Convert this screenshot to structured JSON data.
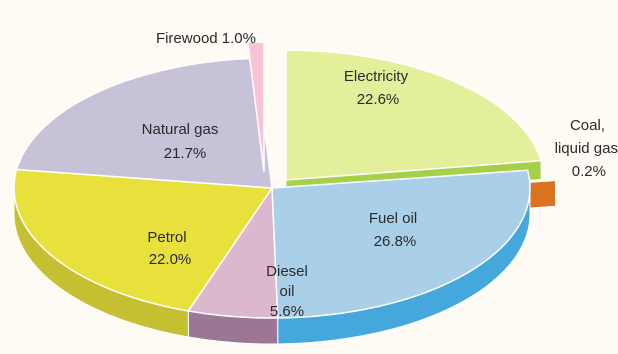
{
  "chart_data": {
    "type": "pie",
    "title": "",
    "slices": [
      {
        "label": "Electricity",
        "value": 22.6,
        "value_label": "22.6%",
        "color": "#e4ef9c",
        "side_color": "#a6cf4a"
      },
      {
        "label": "Coal, liquid gas",
        "value": 0.2,
        "value_label": "0.2%",
        "color": "#f4a23a",
        "side_color": "#d9731f"
      },
      {
        "label": "Fuel oil",
        "value": 26.8,
        "value_label": "26.8%",
        "color": "#a9cfe9",
        "side_color": "#45a8dc"
      },
      {
        "label": "Diesel oil",
        "value": 5.6,
        "value_label": "5.6%",
        "color": "#dcb8cf",
        "side_color": "#9b7795"
      },
      {
        "label": "Petrol",
        "value": 22.0,
        "value_label": "22.0%",
        "color": "#e8e13c",
        "side_color": "#c4c031"
      },
      {
        "label": "Natural gas",
        "value": 21.7,
        "value_label": "21.7%",
        "color": "#c7c2d8",
        "side_color": "#9f9ab6"
      },
      {
        "label": "Firewood",
        "value": 1.0,
        "value_label": "1.0%",
        "color": "#f6c4d2",
        "side_color": "#e08aa5"
      }
    ],
    "labels": {
      "electricity": [
        "Electricity",
        "22.6%"
      ],
      "coal": [
        "Coal,",
        "liquid gas",
        "0.2%"
      ],
      "fuel_oil": [
        "Fuel oil",
        "26.8%"
      ],
      "diesel": [
        "Diesel",
        "oil",
        "5.6%"
      ],
      "petrol": [
        "Petrol",
        "22.0%"
      ],
      "natural_gas": [
        "Natural gas",
        "21.7%"
      ],
      "firewood": "Firewood 1.0%"
    }
  }
}
